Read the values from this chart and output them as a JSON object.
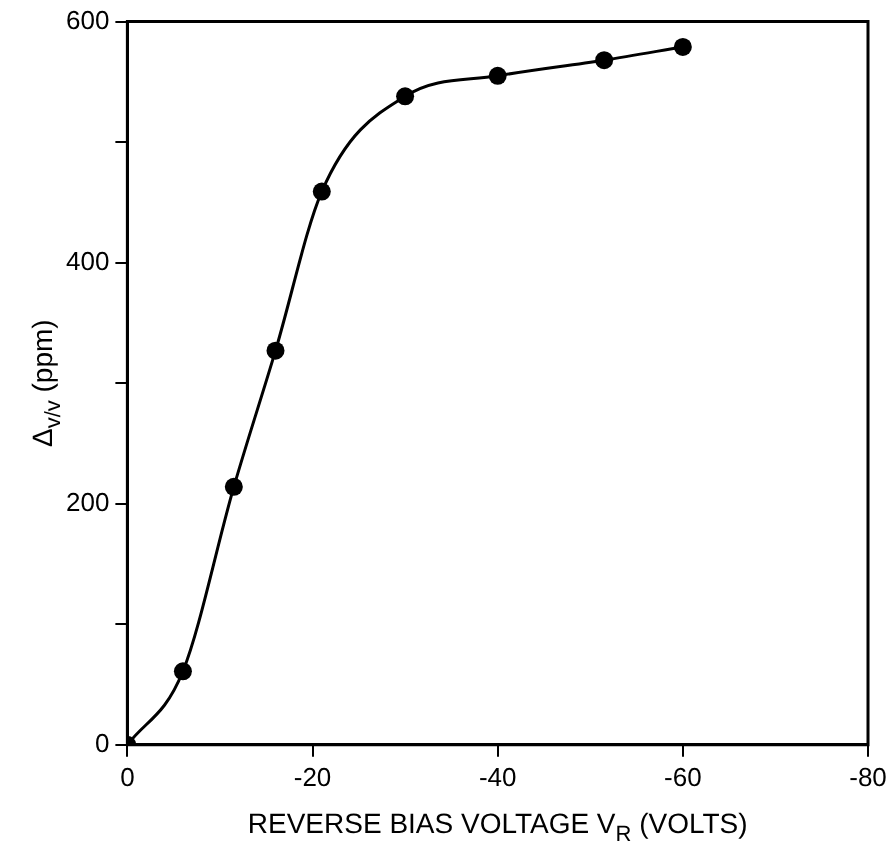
{
  "chart_data": {
    "type": "line",
    "xlabel": "REVERSE BIAS VOLTAGE V$_{R}$ (VOLTS)",
    "ylabel": "Δ$_{v/v}$ (ppm)",
    "x": [
      0,
      -6,
      -11.5,
      -16,
      -21,
      -30,
      -40,
      -51.5,
      -60
    ],
    "series": [
      {
        "color": "#000000",
        "values": [
          0,
          61,
          214,
          327,
          459,
          538,
          555,
          568,
          579
        ]
      }
    ],
    "xlim": [
      0,
      -80
    ],
    "xticks": [
      0,
      -20,
      -40,
      -60,
      -80
    ],
    "ylim": [
      0,
      600
    ],
    "yticks": [
      0,
      {
        "value": 100,
        "label": null
      },
      200,
      {
        "value": 300,
        "label": null
      },
      400,
      {
        "value": 500,
        "label": null
      },
      600
    ],
    "grid": false,
    "legend": false,
    "marker": "circle",
    "line_style": "solid"
  }
}
